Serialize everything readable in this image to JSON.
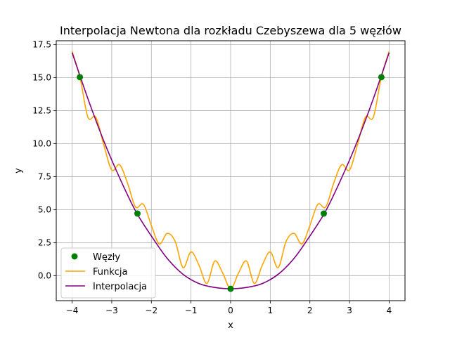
{
  "chart_data": {
    "type": "line",
    "title": "Interpolacja Newtona dla rozkładu Czebyszewa dla 5 węzłów",
    "xlabel": "x",
    "ylabel": "y",
    "xlim": [
      -4.4,
      4.4
    ],
    "ylim": [
      -1.9,
      17.8
    ],
    "xticks": [
      -4,
      -3,
      -2,
      -1,
      0,
      1,
      2,
      3,
      4
    ],
    "yticks": [
      0.0,
      2.5,
      5.0,
      7.5,
      10.0,
      12.5,
      15.0,
      17.5
    ],
    "xtick_labels": [
      "−4",
      "−3",
      "−2",
      "−1",
      "0",
      "1",
      "2",
      "3",
      "4"
    ],
    "ytick_labels": [
      "0.0",
      "2.5",
      "5.0",
      "7.5",
      "10.0",
      "12.5",
      "15.0",
      "17.5"
    ],
    "grid": true,
    "legend_position": "lower-left",
    "series": [
      {
        "name": "Węzły",
        "kind": "scatter",
        "color": "#008000",
        "x": [
          -3.8042,
          -2.3511,
          0.0,
          2.3511,
          3.8042
        ],
        "y": [
          15.04,
          4.7,
          -1.0,
          4.7,
          15.04
        ]
      },
      {
        "name": "Funkcja",
        "kind": "line",
        "color": "#ffa500",
        "x": [
          -4.0,
          -3.8,
          -3.6,
          -3.4,
          -3.2,
          -3.0,
          -2.8,
          -2.6,
          -2.4,
          -2.2,
          -2.0,
          -1.8,
          -1.6,
          -1.4,
          -1.2,
          -1.0,
          -0.8,
          -0.6,
          -0.4,
          -0.2,
          0.0,
          0.2,
          0.4,
          0.6,
          0.8,
          1.0,
          1.2,
          1.4,
          1.6,
          1.8,
          2.0,
          2.2,
          2.4,
          2.6,
          2.8,
          3.0,
          3.2,
          3.4,
          3.6,
          3.8,
          4.0
        ],
        "y": [
          17.0,
          15.0,
          12.0,
          12.0,
          9.9,
          8.0,
          8.4,
          7.0,
          5.2,
          5.4,
          3.8,
          2.4,
          3.2,
          2.6,
          0.6,
          1.8,
          0.8,
          -0.6,
          1.1,
          0.2,
          -1.0,
          0.2,
          1.1,
          -0.6,
          0.8,
          1.8,
          0.6,
          2.6,
          3.2,
          2.4,
          3.8,
          5.4,
          5.2,
          7.0,
          8.4,
          8.0,
          9.9,
          12.0,
          12.0,
          15.0,
          17.0
        ]
      },
      {
        "name": "Interpolacja",
        "kind": "line",
        "color": "#800080",
        "x": [
          -4.0,
          -3.6,
          -3.2,
          -2.8,
          -2.4,
          -2.0,
          -1.6,
          -1.2,
          -0.8,
          -0.4,
          0.0,
          0.4,
          0.8,
          1.2,
          1.6,
          2.0,
          2.4,
          2.8,
          3.2,
          3.6,
          4.0
        ],
        "y": [
          16.9,
          13.4,
          10.2,
          7.4,
          4.9,
          3.0,
          1.3,
          0.1,
          -0.6,
          -0.9,
          -1.0,
          -0.9,
          -0.6,
          0.1,
          1.3,
          3.0,
          4.9,
          7.4,
          10.2,
          13.4,
          16.9
        ]
      }
    ]
  }
}
